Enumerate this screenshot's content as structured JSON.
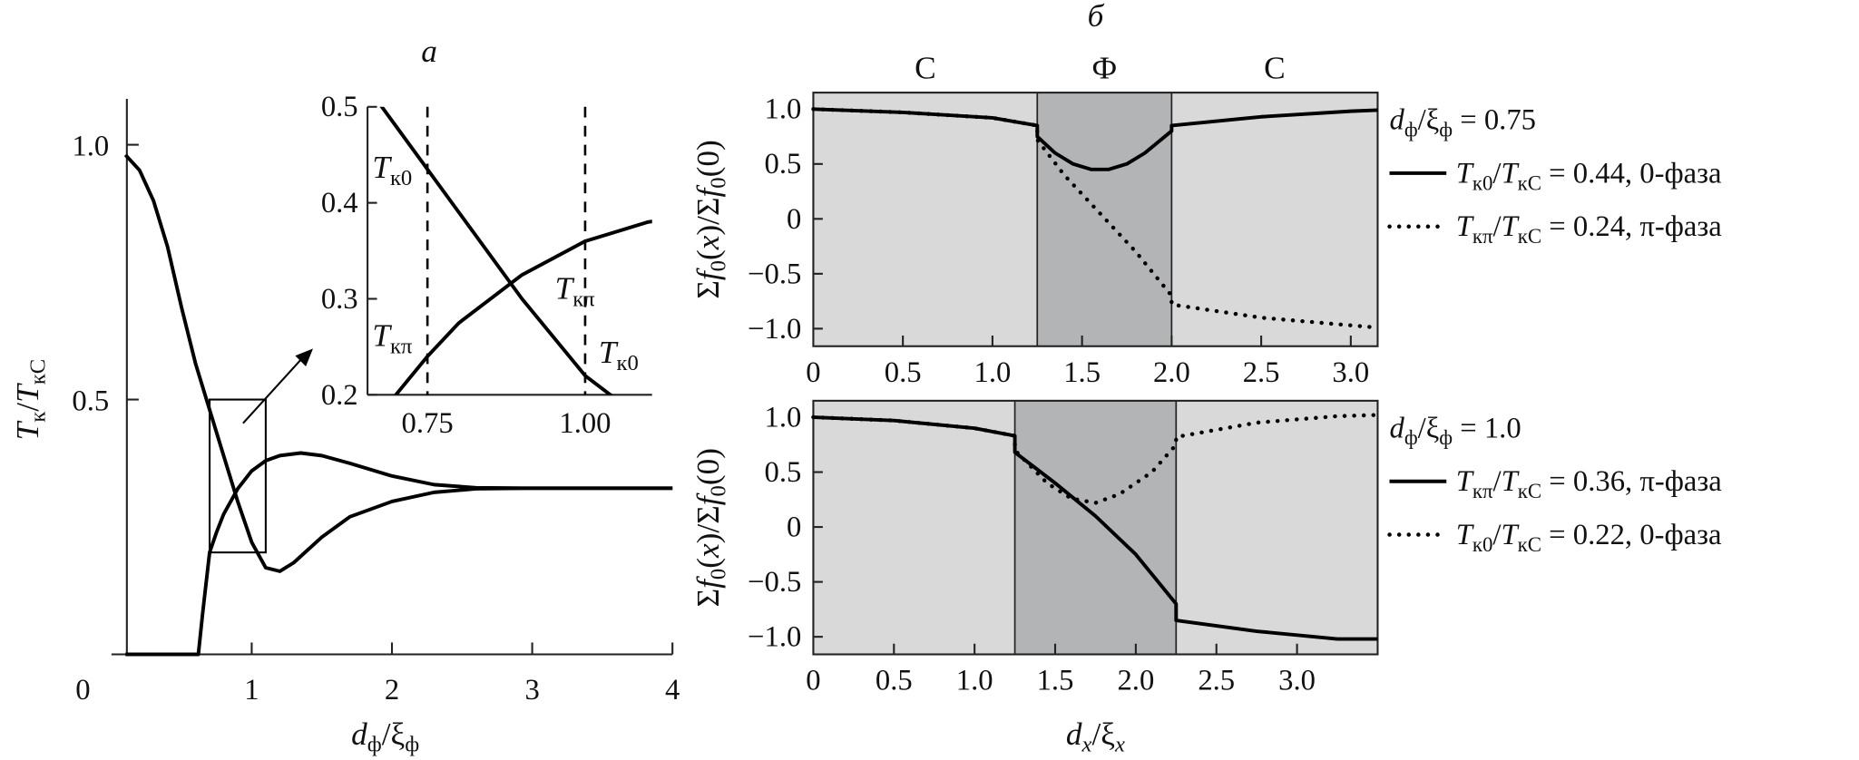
{
  "chart_data": [
    {
      "type": "line",
      "panel": "left",
      "xlabel": [
        [
          "d",
          "i"
        ],
        [
          "ф",
          "sub"
        ],
        [
          "/",
          ""
        ],
        [
          "ξ",
          ""
        ],
        [
          "ф",
          "sub"
        ]
      ],
      "ylabel": [
        [
          "T",
          "i"
        ],
        [
          "к",
          "sub"
        ],
        [
          "/",
          ""
        ],
        [
          "T",
          "i"
        ],
        [
          "кС",
          "sub"
        ]
      ],
      "xlim": [
        0,
        4
      ],
      "ylim": [
        0,
        1.09
      ],
      "xticks": [
        "0",
        "1",
        "2",
        "3",
        "4"
      ],
      "xtick_values": [
        0,
        1,
        2,
        3,
        4
      ],
      "yticks": [
        "0.5",
        "1.0"
      ],
      "ytick_values": [
        0.5,
        1.0
      ],
      "zoom_box": {
        "x": [
          0.7,
          1.1
        ],
        "y": [
          0.2,
          0.5
        ]
      },
      "series": [
        {
          "name": "Tк0",
          "style": "solid",
          "points": [
            [
              0.1,
              0.98
            ],
            [
              0.2,
              0.95
            ],
            [
              0.3,
              0.89
            ],
            [
              0.4,
              0.8
            ],
            [
              0.5,
              0.68
            ],
            [
              0.6,
              0.57
            ],
            [
              0.7,
              0.48
            ],
            [
              0.8,
              0.39
            ],
            [
              0.9,
              0.3
            ],
            [
              1.0,
              0.22
            ],
            [
              1.1,
              0.17
            ],
            [
              1.2,
              0.163
            ],
            [
              1.3,
              0.18
            ],
            [
              1.5,
              0.23
            ],
            [
              1.7,
              0.27
            ],
            [
              2.0,
              0.3
            ],
            [
              2.3,
              0.318
            ],
            [
              2.6,
              0.325
            ],
            [
              3.0,
              0.326
            ],
            [
              4.0,
              0.326
            ]
          ]
        },
        {
          "name": "Tкπ",
          "style": "solid",
          "points": [
            [
              0.1,
              0
            ],
            [
              0.62,
              0
            ],
            [
              0.65,
              0.08
            ],
            [
              0.7,
              0.2
            ],
            [
              0.75,
              0.24
            ],
            [
              0.8,
              0.275
            ],
            [
              0.9,
              0.325
            ],
            [
              1.0,
              0.36
            ],
            [
              1.1,
              0.38
            ],
            [
              1.2,
              0.39
            ],
            [
              1.35,
              0.395
            ],
            [
              1.5,
              0.39
            ],
            [
              1.7,
              0.375
            ],
            [
              2.0,
              0.35
            ],
            [
              2.3,
              0.333
            ],
            [
              2.6,
              0.327
            ],
            [
              3.0,
              0.326
            ],
            [
              4.0,
              0.326
            ]
          ]
        }
      ]
    },
    {
      "type": "line",
      "panel": "inset",
      "title": "а",
      "xlim": [
        0.655,
        1.1
      ],
      "ylim": [
        0.2,
        0.5
      ],
      "xticks": [
        "0.75",
        "1.00"
      ],
      "xtick_values": [
        0.75,
        1.0
      ],
      "yticks": [
        "0.2",
        "0.3",
        "0.4",
        "0.5"
      ],
      "ytick_values": [
        0.2,
        0.3,
        0.4,
        0.5
      ],
      "vlines": [
        0.75,
        1.0
      ],
      "annotations": [
        {
          "parts": [
            [
              "T",
              "i"
            ],
            [
              "к0",
              "sub"
            ]
          ]
        },
        {
          "parts": [
            [
              "T",
              "i"
            ],
            [
              "кπ",
              "sub"
            ]
          ]
        },
        {
          "parts": [
            [
              "T",
              "i"
            ],
            [
              "кπ",
              "sub"
            ]
          ]
        },
        {
          "parts": [
            [
              "T",
              "i"
            ],
            [
              "к0",
              "sub"
            ]
          ]
        }
      ]
    },
    {
      "type": "line",
      "panel": "top-right",
      "title": "б",
      "regions": [
        {
          "label": "С",
          "x": [
            0,
            1.25
          ]
        },
        {
          "label": "Ф",
          "x": [
            1.25,
            2.0
          ]
        },
        {
          "label": "С",
          "x": [
            2.0,
            3.15
          ]
        }
      ],
      "ylabel": [
        [
          "Σ",
          ""
        ],
        [
          "f",
          "i"
        ],
        [
          "0",
          "sub"
        ],
        [
          "(",
          ""
        ],
        [
          "x",
          "i"
        ],
        [
          ")/Σ",
          ""
        ],
        [
          "f",
          "i"
        ],
        [
          "0",
          "sub"
        ],
        [
          "(0)",
          ""
        ]
      ],
      "xlim": [
        0,
        3.15
      ],
      "ylim": [
        -1.16,
        1.15
      ],
      "xticks": [
        "0",
        "0.5",
        "1.0",
        "1.5",
        "2.0",
        "2.5",
        "3.0"
      ],
      "xtick_values": [
        0,
        0.5,
        1,
        1.5,
        2,
        2.5,
        3
      ],
      "yticks": [
        "1.0",
        "0.5",
        "0",
        "−0.5",
        "−1.0"
      ],
      "ytick_values": [
        1,
        0.5,
        0,
        -0.5,
        -1
      ],
      "legend_title": [
        [
          "d",
          "i"
        ],
        [
          "ф",
          "sub"
        ],
        [
          "/ξ",
          ""
        ],
        [
          "ф",
          "sub"
        ],
        [
          " = 0.75",
          ""
        ]
      ],
      "legend_position": "right",
      "series": [
        {
          "style": "solid",
          "label": [
            [
              "T",
              "i"
            ],
            [
              "к0",
              "sub"
            ],
            [
              "/",
              ""
            ],
            [
              "T",
              "i"
            ],
            [
              "кС",
              "sub"
            ],
            [
              " = 0.44, 0-фаза",
              ""
            ]
          ],
          "points": [
            [
              0,
              1.0
            ],
            [
              0.5,
              0.97
            ],
            [
              1.0,
              0.92
            ],
            [
              1.25,
              0.85
            ],
            [
              1.25,
              0.75
            ],
            [
              1.35,
              0.6
            ],
            [
              1.45,
              0.5
            ],
            [
              1.55,
              0.45
            ],
            [
              1.65,
              0.45
            ],
            [
              1.75,
              0.5
            ],
            [
              1.85,
              0.6
            ],
            [
              2.0,
              0.8
            ],
            [
              2.0,
              0.85
            ],
            [
              2.5,
              0.93
            ],
            [
              3.0,
              0.98
            ],
            [
              3.15,
              0.99
            ]
          ]
        },
        {
          "style": "dotted",
          "label": [
            [
              "T",
              "i"
            ],
            [
              "кπ",
              "sub"
            ],
            [
              "/",
              ""
            ],
            [
              "T",
              "i"
            ],
            [
              "кС",
              "sub"
            ],
            [
              " = 0.24, π-фаза",
              ""
            ]
          ],
          "points": [
            [
              0,
              1.0
            ],
            [
              0.5,
              0.97
            ],
            [
              1.0,
              0.92
            ],
            [
              1.25,
              0.85
            ],
            [
              1.25,
              0.72
            ],
            [
              1.4,
              0.4
            ],
            [
              1.6,
              0.05
            ],
            [
              1.8,
              -0.3
            ],
            [
              2.0,
              -0.7
            ],
            [
              2.0,
              -0.78
            ],
            [
              2.5,
              -0.9
            ],
            [
              3.0,
              -0.97
            ],
            [
              3.15,
              -0.99
            ]
          ]
        }
      ]
    },
    {
      "type": "line",
      "panel": "bottom-right",
      "regions": [
        {
          "label": "",
          "x": [
            0,
            1.25
          ]
        },
        {
          "label": "",
          "x": [
            1.25,
            2.25
          ]
        },
        {
          "label": "",
          "x": [
            2.25,
            3.5
          ]
        }
      ],
      "xlabel": [
        [
          "d",
          "i"
        ],
        [
          "x",
          "subi"
        ],
        [
          "/ξ",
          ""
        ],
        [
          "x",
          "subi"
        ]
      ],
      "ylabel": [
        [
          "Σ",
          ""
        ],
        [
          "f",
          "i"
        ],
        [
          "0",
          "sub"
        ],
        [
          "(",
          ""
        ],
        [
          "x",
          "i"
        ],
        [
          ")/Σ",
          ""
        ],
        [
          "f",
          "i"
        ],
        [
          "0",
          "sub"
        ],
        [
          "(0)",
          ""
        ]
      ],
      "xlim": [
        0,
        3.5
      ],
      "ylim": [
        -1.16,
        1.15
      ],
      "xticks": [
        "0",
        "0.5",
        "1.0",
        "1.5",
        "2.0",
        "2.5",
        "3.0"
      ],
      "xtick_values": [
        0,
        0.5,
        1,
        1.5,
        2,
        2.5,
        3
      ],
      "yticks": [
        "1.0",
        "0.5",
        "0",
        "−0.5",
        "−1.0"
      ],
      "ytick_values": [
        1,
        0.5,
        0,
        -0.5,
        -1
      ],
      "legend_title": [
        [
          "d",
          "i"
        ],
        [
          "ф",
          "sub"
        ],
        [
          "/ξ",
          ""
        ],
        [
          "ф",
          "sub"
        ],
        [
          " = 1.0",
          ""
        ]
      ],
      "legend_position": "right",
      "series": [
        {
          "style": "solid",
          "label": [
            [
              "T",
              "i"
            ],
            [
              "кπ",
              "sub"
            ],
            [
              "/",
              ""
            ],
            [
              "T",
              "i"
            ],
            [
              "кС",
              "sub"
            ],
            [
              " = 0.36, π-фаза",
              ""
            ]
          ],
          "points": [
            [
              0,
              1.0
            ],
            [
              0.5,
              0.97
            ],
            [
              1.0,
              0.9
            ],
            [
              1.25,
              0.83
            ],
            [
              1.25,
              0.68
            ],
            [
              1.5,
              0.4
            ],
            [
              1.75,
              0.1
            ],
            [
              2.0,
              -0.25
            ],
            [
              2.25,
              -0.7
            ],
            [
              2.25,
              -0.85
            ],
            [
              2.75,
              -0.95
            ],
            [
              3.25,
              -1.02
            ],
            [
              3.5,
              -1.02
            ]
          ]
        },
        {
          "style": "dotted",
          "label": [
            [
              "T",
              "i"
            ],
            [
              "к0",
              "sub"
            ],
            [
              "/",
              ""
            ],
            [
              "T",
              "i"
            ],
            [
              "кС",
              "sub"
            ],
            [
              " = 0.22, 0-фаза",
              ""
            ]
          ],
          "points": [
            [
              0,
              1.0
            ],
            [
              0.5,
              0.97
            ],
            [
              1.0,
              0.9
            ],
            [
              1.25,
              0.83
            ],
            [
              1.25,
              0.7
            ],
            [
              1.45,
              0.4
            ],
            [
              1.6,
              0.26
            ],
            [
              1.75,
              0.22
            ],
            [
              1.9,
              0.3
            ],
            [
              2.1,
              0.5
            ],
            [
              2.25,
              0.75
            ],
            [
              2.25,
              0.82
            ],
            [
              2.75,
              0.95
            ],
            [
              3.25,
              1.01
            ],
            [
              3.5,
              1.02
            ]
          ]
        }
      ]
    }
  ],
  "colors": {
    "region_s": "#d9d9d9",
    "region_f": "#b3b4b6",
    "line": "#000000"
  }
}
